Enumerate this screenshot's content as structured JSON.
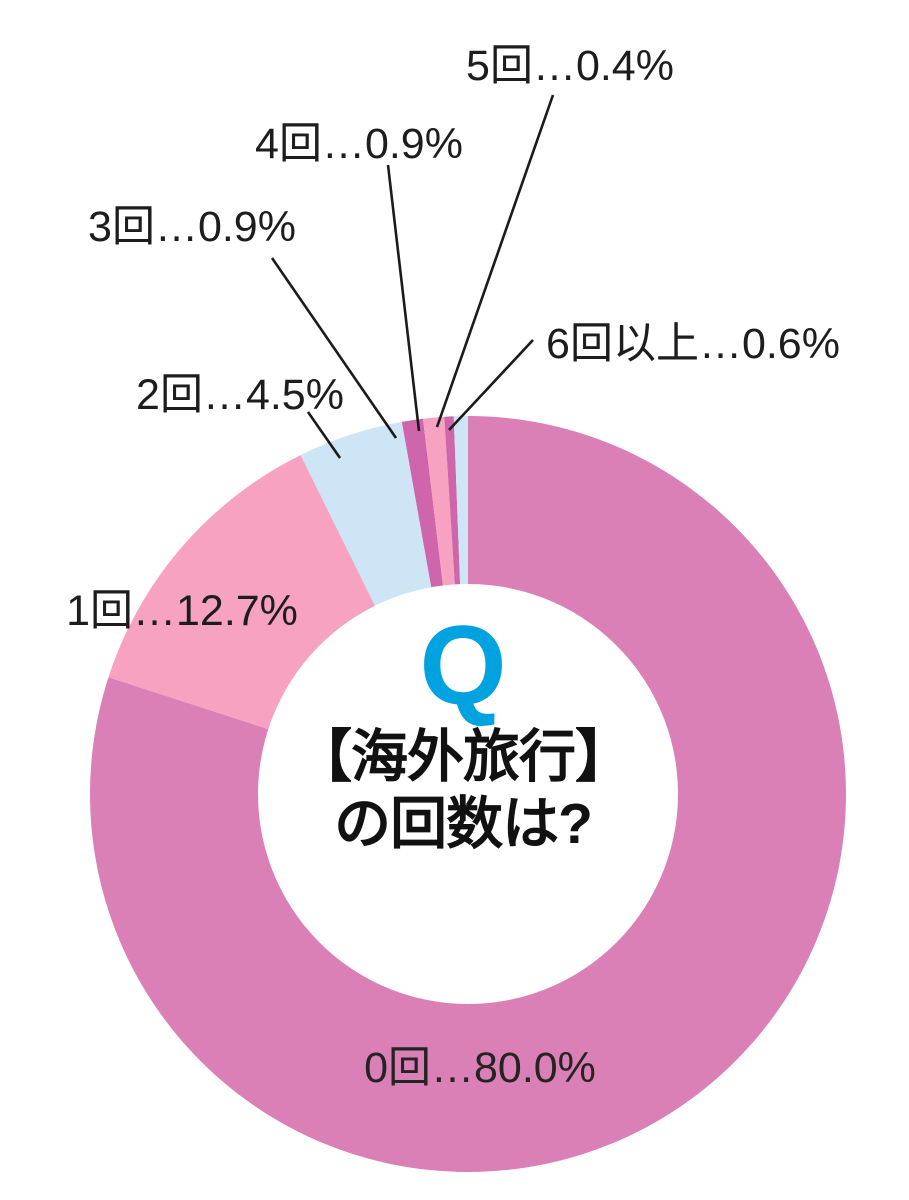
{
  "chart_data": {
    "type": "pie",
    "variant": "donut",
    "title": {
      "q_mark": "Q",
      "line1": "【海外旅行】",
      "line2": "の回数は?"
    },
    "separator": "…",
    "unit": "%",
    "start_angle_deg": 0,
    "direction": "clockwise",
    "legend_position": "around-slices",
    "colors": {
      "accent_q": "#00a3e0",
      "label_text": "#1d1d1d",
      "leader_line": "#1b1b1b",
      "background": "#ffffff"
    },
    "segments": [
      {
        "label": "0回",
        "value": 80.0,
        "display": "0回…80.0%",
        "color": "#db80b7"
      },
      {
        "label": "1回",
        "value": 12.7,
        "display": "1回…12.7%",
        "color": "#f6a2c0"
      },
      {
        "label": "2回",
        "value": 4.5,
        "display": "2回…4.5%",
        "color": "#cee5f6"
      },
      {
        "label": "3回",
        "value": 0.9,
        "display": "3回…0.9%",
        "color": "#cf66ab"
      },
      {
        "label": "4回",
        "value": 0.9,
        "display": "4回…0.9%",
        "color": "#f6a2c0"
      },
      {
        "label": "5回",
        "value": 0.4,
        "display": "5回…0.4%",
        "color": "#cf66ab"
      },
      {
        "label": "6回以上",
        "value": 0.6,
        "display": "6回以上…0.6%",
        "color": "#cee5f6"
      }
    ]
  }
}
